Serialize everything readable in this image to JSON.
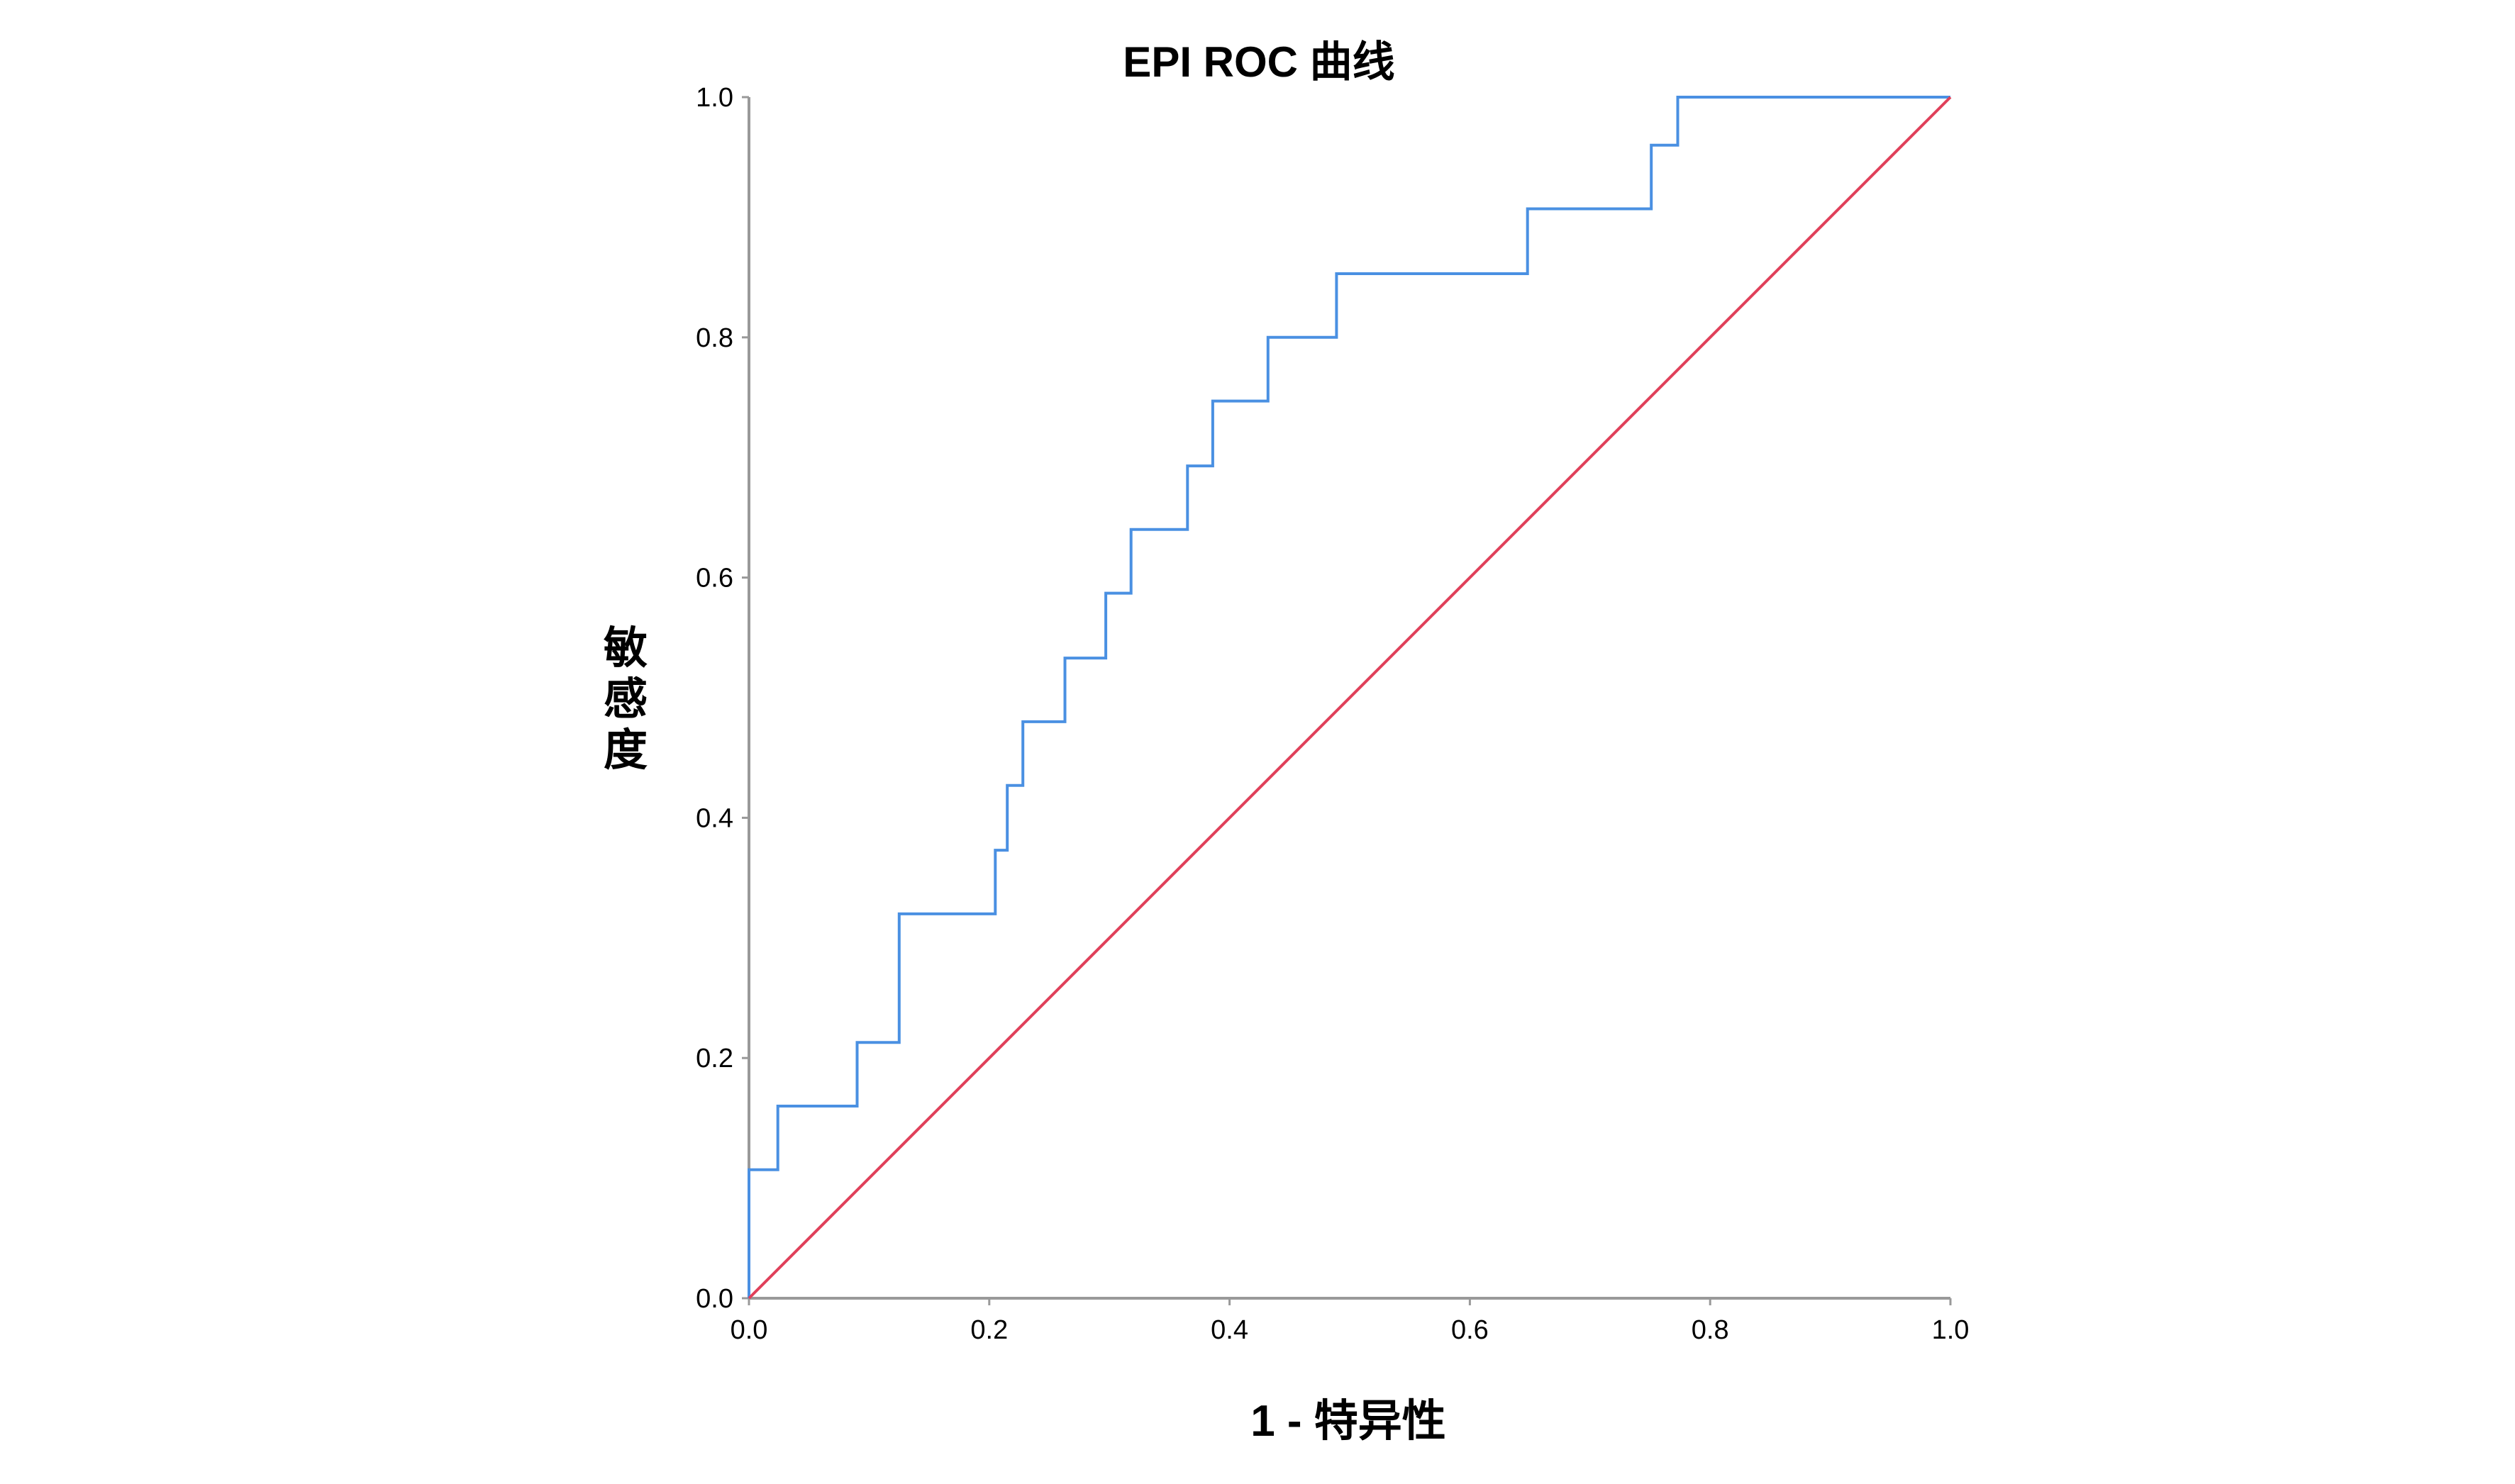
{
  "chart_data": {
    "type": "line",
    "title": "EPI ROC 曲线",
    "xlabel": "1 - 特异性",
    "ylabel": "敏感度",
    "xlim": [
      0.0,
      1.0
    ],
    "ylim": [
      0.0,
      1.0
    ],
    "x_ticks": [
      "0.0",
      "0.2",
      "0.4",
      "0.6",
      "0.8",
      "1.0"
    ],
    "y_ticks": [
      "0.0",
      "0.2",
      "0.4",
      "0.6",
      "0.8",
      "1.0"
    ],
    "grid": false,
    "legend": "none",
    "series": [
      {
        "color": "#4a90e2",
        "x": [
          0.0,
          0.0,
          0.024,
          0.024,
          0.09,
          0.09,
          0.125,
          0.125,
          0.205,
          0.205,
          0.215,
          0.215,
          0.228,
          0.228,
          0.263,
          0.263,
          0.297,
          0.297,
          0.318,
          0.318,
          0.365,
          0.365,
          0.386,
          0.386,
          0.432,
          0.432,
          0.489,
          0.489,
          0.648,
          0.648,
          0.751,
          0.751,
          0.773,
          0.773,
          1.0
        ],
        "y": [
          0.0,
          0.107,
          0.107,
          0.16,
          0.16,
          0.213,
          0.213,
          0.32,
          0.32,
          0.373,
          0.373,
          0.427,
          0.427,
          0.48,
          0.48,
          0.533,
          0.533,
          0.587,
          0.587,
          0.64,
          0.64,
          0.693,
          0.693,
          0.747,
          0.747,
          0.8,
          0.8,
          0.853,
          0.853,
          0.907,
          0.907,
          0.96,
          0.96,
          1.0,
          1.0
        ]
      },
      {
        "color": "#e0405a",
        "x": [
          0.0,
          1.0
        ],
        "y": [
          0.0,
          1.0
        ]
      }
    ]
  }
}
